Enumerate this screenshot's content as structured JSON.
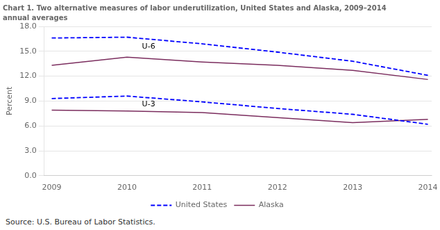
{
  "chart_data": {
    "type": "line",
    "title": "Chart 1. Two alternative measures of labor underutilization, United States and Alaska, 2009–2014",
    "subtitle": "annual averages",
    "ylabel": "Percent",
    "source": "Source: U.S. Bureau of Labor Statistics.",
    "x": [
      2009,
      2010,
      2011,
      2012,
      2013,
      2014
    ],
    "series": [
      {
        "name": "United States",
        "color": "#0000FF",
        "line_style": "dashed",
        "values": [
          16.6,
          16.7,
          15.9,
          14.9,
          13.8,
          12.1
        ]
      },
      {
        "name": "Alaska",
        "color": "#7B2D5E",
        "line_style": "solid",
        "values": [
          13.3,
          14.3,
          13.7,
          13.3,
          12.7,
          11.6
        ]
      },
      {
        "name": "United States",
        "color": "#0000FF",
        "line_style": "dashed",
        "values": [
          9.3,
          9.6,
          8.9,
          8.1,
          7.4,
          6.2
        ]
      },
      {
        "name": "Alaska",
        "color": "#7B2D5E",
        "line_style": "solid",
        "values": [
          7.9,
          7.8,
          7.6,
          7.0,
          6.4,
          6.8
        ]
      }
    ],
    "annotations": [
      {
        "text": "U-6",
        "x": 2010.2,
        "y": 15.3
      },
      {
        "text": "U-3",
        "x": 2010.2,
        "y": 8.4
      }
    ],
    "xlim": [
      2008.9,
      2014.05
    ],
    "xticks": [
      2009,
      2010,
      2011,
      2012,
      2013,
      2014
    ],
    "ylim": [
      0,
      18
    ],
    "yticks": [
      {
        "value": 0,
        "label": "0.0"
      },
      {
        "value": 3,
        "label": "3.0"
      },
      {
        "value": 6,
        "label": "6.0"
      },
      {
        "value": 9,
        "label": "9.0"
      },
      {
        "value": 12,
        "label": "12.0"
      },
      {
        "value": 15,
        "label": "15.0"
      },
      {
        "value": 18,
        "label": "18.0"
      }
    ],
    "grid": "y",
    "legend": "bottom"
  }
}
